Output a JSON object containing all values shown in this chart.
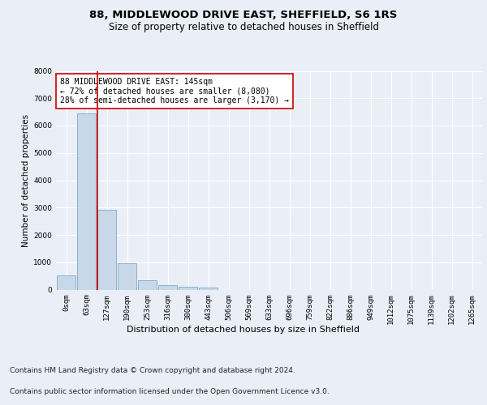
{
  "title1": "88, MIDDLEWOOD DRIVE EAST, SHEFFIELD, S6 1RS",
  "title2": "Size of property relative to detached houses in Sheffield",
  "xlabel": "Distribution of detached houses by size in Sheffield",
  "ylabel": "Number of detached properties",
  "footnote1": "Contains HM Land Registry data © Crown copyright and database right 2024.",
  "footnote2": "Contains public sector information licensed under the Open Government Licence v3.0.",
  "bar_labels": [
    "0sqm",
    "63sqm",
    "127sqm",
    "190sqm",
    "253sqm",
    "316sqm",
    "380sqm",
    "443sqm",
    "506sqm",
    "569sqm",
    "633sqm",
    "696sqm",
    "759sqm",
    "822sqm",
    "886sqm",
    "949sqm",
    "1012sqm",
    "1075sqm",
    "1139sqm",
    "1202sqm",
    "1265sqm"
  ],
  "bar_values": [
    530,
    6430,
    2930,
    960,
    340,
    160,
    100,
    65,
    0,
    0,
    0,
    0,
    0,
    0,
    0,
    0,
    0,
    0,
    0,
    0,
    0
  ],
  "bar_color": "#c8d8e8",
  "bar_edge_color": "#7aaac8",
  "vline_x": 1.55,
  "vline_color": "#cc0000",
  "annotation_text": "88 MIDDLEWOOD DRIVE EAST: 145sqm\n← 72% of detached houses are smaller (8,080)\n28% of semi-detached houses are larger (3,170) →",
  "annotation_box_color": "#ffffff",
  "annotation_box_edge": "#cc0000",
  "ylim": [
    0,
    8000
  ],
  "yticks": [
    0,
    1000,
    2000,
    3000,
    4000,
    5000,
    6000,
    7000,
    8000
  ],
  "bg_color": "#eaeff7",
  "plot_bg_color": "#eaeff7",
  "grid_color": "#ffffff",
  "title1_fontsize": 9.5,
  "title2_fontsize": 8.5,
  "ylabel_fontsize": 7.5,
  "xlabel_fontsize": 8,
  "tick_fontsize": 6.5,
  "annotation_fontsize": 7,
  "footnote_fontsize": 6.5
}
